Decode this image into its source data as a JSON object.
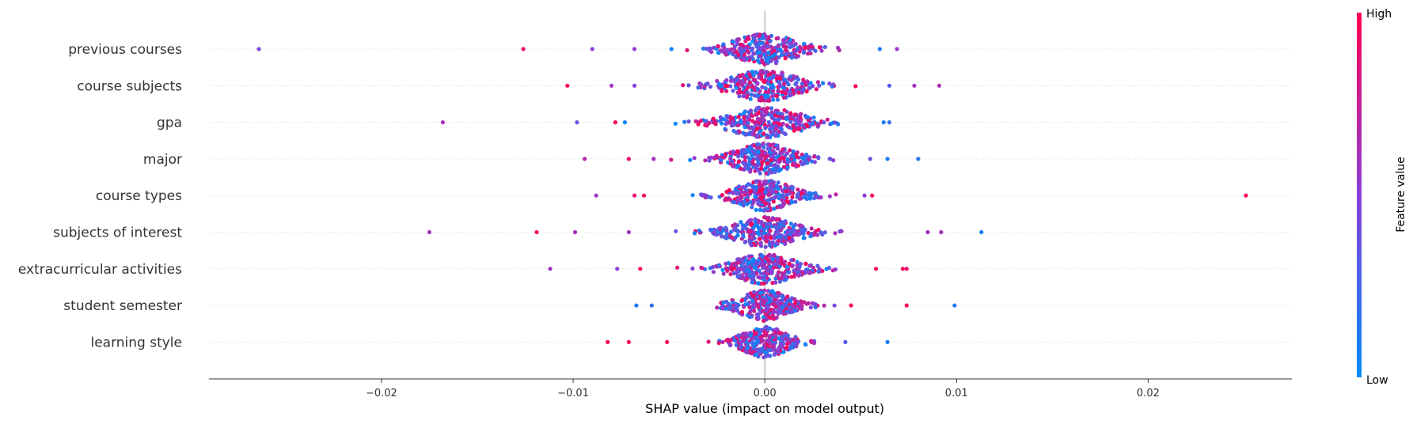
{
  "chart_data": {
    "type": "scatter",
    "subtype": "shap-beeswarm",
    "xlabel": "SHAP value (impact on model output)",
    "xlim": [
      -0.029,
      0.0275
    ],
    "xticks": [
      -0.02,
      -0.01,
      0.0,
      0.01,
      0.02
    ],
    "xtick_labels": [
      "−0.02",
      "−0.01",
      "0.00",
      "0.01",
      "0.02"
    ],
    "colorbar": {
      "title": "Feature value",
      "high_label": "High",
      "low_label": "Low",
      "high_color": "#ff0052",
      "low_color": "#008bfb"
    },
    "features": [
      {
        "name": "previous courses",
        "spread": 0.0028,
        "outliers": [
          [
            -0.0264,
            0.45
          ],
          [
            -0.0126,
            0.9
          ],
          [
            -0.009,
            0.5
          ],
          [
            -0.0068,
            0.55
          ],
          [
            0.006,
            0.1
          ],
          [
            0.0069,
            0.55
          ]
        ]
      },
      {
        "name": "course subjects",
        "spread": 0.003,
        "outliers": [
          [
            -0.0103,
            0.95
          ],
          [
            -0.008,
            0.6
          ],
          [
            -0.0068,
            0.5
          ],
          [
            0.0065,
            0.3
          ],
          [
            0.0078,
            0.6
          ],
          [
            0.0091,
            0.65
          ]
        ]
      },
      {
        "name": "gpa",
        "spread": 0.0032,
        "outliers": [
          [
            -0.0168,
            0.6
          ],
          [
            -0.0098,
            0.35
          ],
          [
            -0.0078,
            0.95
          ],
          [
            -0.0073,
            0.05
          ],
          [
            0.0062,
            0.1
          ],
          [
            0.0065,
            0.2
          ]
        ]
      },
      {
        "name": "major",
        "spread": 0.0026,
        "outliers": [
          [
            -0.0094,
            0.7
          ],
          [
            -0.0071,
            0.9
          ],
          [
            -0.0058,
            0.6
          ],
          [
            0.0055,
            0.4
          ],
          [
            0.0064,
            0.1
          ],
          [
            0.008,
            0.15
          ]
        ]
      },
      {
        "name": "course types",
        "spread": 0.0025,
        "outliers": [
          [
            -0.0088,
            0.6
          ],
          [
            -0.0068,
            0.9
          ],
          [
            -0.0063,
            0.95
          ],
          [
            0.0052,
            0.5
          ],
          [
            0.0056,
            0.95
          ],
          [
            0.0251,
            1.0
          ]
        ]
      },
      {
        "name": "subjects of interest",
        "spread": 0.0028,
        "outliers": [
          [
            -0.0175,
            0.6
          ],
          [
            -0.0119,
            0.95
          ],
          [
            -0.0099,
            0.6
          ],
          [
            -0.0071,
            0.6
          ],
          [
            0.0085,
            0.6
          ],
          [
            0.0092,
            0.6
          ],
          [
            0.0113,
            0.1
          ]
        ]
      },
      {
        "name": "extracurricular activities",
        "spread": 0.0027,
        "outliers": [
          [
            -0.0112,
            0.6
          ],
          [
            -0.0077,
            0.5
          ],
          [
            -0.0065,
            0.95
          ],
          [
            0.0058,
            0.95
          ],
          [
            0.0072,
            0.95
          ],
          [
            0.0074,
            0.9
          ]
        ]
      },
      {
        "name": "student semester",
        "spread": 0.0022,
        "outliers": [
          [
            -0.0067,
            0.1
          ],
          [
            -0.0059,
            0.2
          ],
          [
            0.0045,
            0.95
          ],
          [
            0.0074,
            0.95
          ],
          [
            0.0099,
            0.1
          ]
        ]
      },
      {
        "name": "learning style",
        "spread": 0.002,
        "outliers": [
          [
            -0.0082,
            0.95
          ],
          [
            -0.0071,
            0.95
          ],
          [
            -0.0051,
            0.95
          ],
          [
            0.0042,
            0.3
          ],
          [
            0.0064,
            0.1
          ]
        ]
      }
    ]
  }
}
